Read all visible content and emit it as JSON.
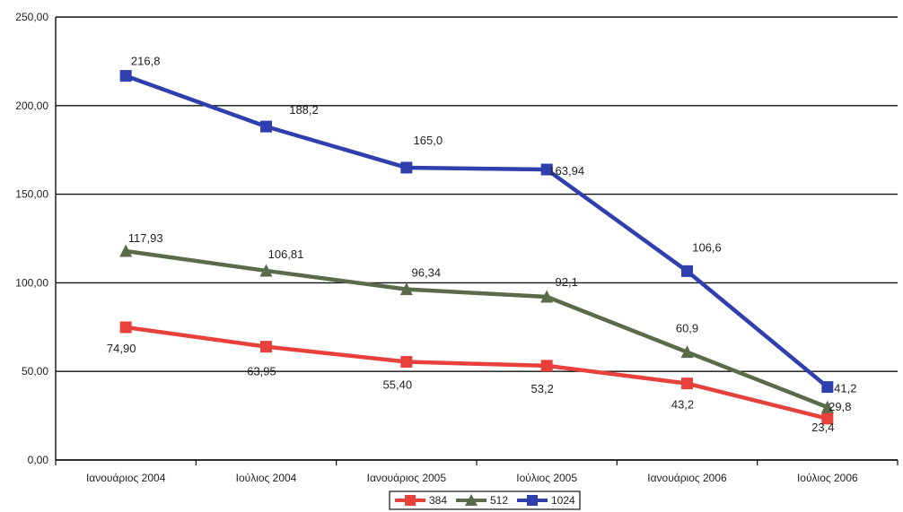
{
  "chart_data": {
    "type": "line",
    "categories": [
      "Ιανουάριος 2004",
      "Ιούλιος 2004",
      "Ιανουάριος 2005",
      "Ιούλιος 2005",
      "Ιανουάριος 2006",
      "Ιούλιος 2006"
    ],
    "ylim": [
      0,
      250
    ],
    "yticks": [
      "0,00",
      "50,00",
      "100,00",
      "150,00",
      "200,00",
      "250,00"
    ],
    "grid": true,
    "legend_position": "bottom",
    "series": [
      {
        "name": "384",
        "color": "#e8413c",
        "marker": "square",
        "values": [
          74.9,
          63.95,
          55.4,
          53.2,
          43.2,
          23.4
        ],
        "labels": [
          "74,90",
          "63,95",
          "55,40",
          "53,2",
          "43,2",
          "23,4"
        ]
      },
      {
        "name": "512",
        "color": "#5a6b4a",
        "marker": "triangle",
        "values": [
          117.93,
          106.81,
          96.34,
          92.1,
          60.9,
          29.8
        ],
        "labels": [
          "117,93",
          "106,81",
          "96,34",
          "92,1",
          "60,9",
          "29,8"
        ]
      },
      {
        "name": "1024",
        "color": "#2f3fae",
        "marker": "square",
        "values": [
          216.8,
          188.2,
          165.0,
          163.94,
          106.6,
          41.2
        ],
        "labels": [
          "216,8",
          "188,2",
          "165,0",
          "163,94",
          "106,6",
          "41,2"
        ]
      }
    ]
  }
}
